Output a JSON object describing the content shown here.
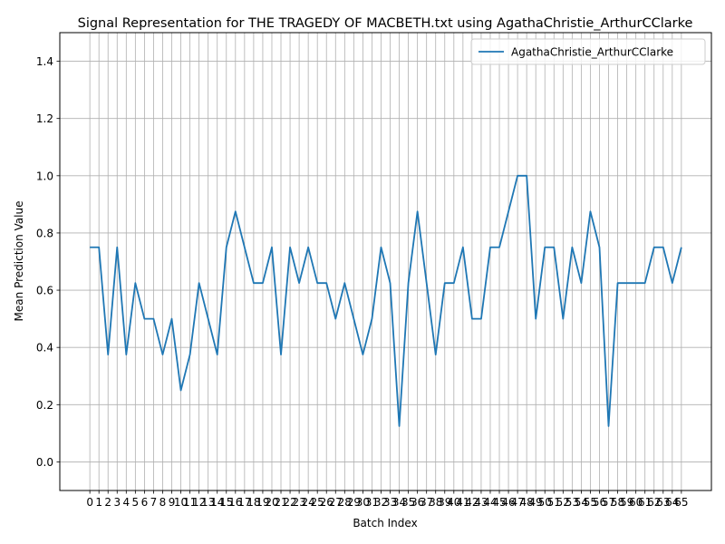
{
  "chart_data": {
    "type": "line",
    "title": "Signal Representation for THE TRAGEDY OF MACBETH.txt using AgathaChristie_ArthurCClarke",
    "xlabel": "Batch Index",
    "ylabel": "Mean Prediction Value",
    "xlim": [
      -3.3,
      68.3
    ],
    "ylim": [
      -0.1,
      1.5
    ],
    "yticks": [
      0.0,
      0.2,
      0.4,
      0.6,
      0.8,
      1.0,
      1.2,
      1.4
    ],
    "grid": true,
    "legend_position": "top-right",
    "series": [
      {
        "name": "AgathaChristie_ArthurCClarke",
        "color": "#1f77b4",
        "x": [
          0,
          1,
          2,
          3,
          4,
          5,
          6,
          7,
          8,
          9,
          10,
          11,
          12,
          13,
          14,
          15,
          16,
          17,
          18,
          19,
          20,
          21,
          22,
          23,
          24,
          25,
          26,
          27,
          28,
          29,
          30,
          31,
          32,
          33,
          34,
          35,
          36,
          37,
          38,
          39,
          40,
          41,
          42,
          43,
          44,
          45,
          46,
          47,
          48,
          49,
          50,
          51,
          52,
          53,
          54,
          55,
          56,
          57,
          58,
          59,
          60,
          61,
          62,
          63,
          64,
          65
        ],
        "values": [
          0.75,
          0.75,
          0.375,
          0.75,
          0.375,
          0.625,
          0.5,
          0.5,
          0.375,
          0.5,
          0.25,
          0.375,
          0.625,
          0.5,
          0.375,
          0.75,
          0.875,
          0.75,
          0.625,
          0.625,
          0.75,
          0.375,
          0.75,
          0.625,
          0.75,
          0.625,
          0.625,
          0.5,
          0.625,
          0.5,
          0.375,
          0.5,
          0.75,
          0.625,
          0.125,
          0.625,
          0.875,
          0.625,
          0.375,
          0.625,
          0.625,
          0.75,
          0.5,
          0.5,
          0.75,
          0.75,
          0.875,
          1.0,
          1.0,
          0.5,
          0.75,
          0.75,
          0.5,
          0.75,
          0.625,
          0.875,
          0.75,
          0.125,
          0.625,
          0.625,
          0.625,
          0.625,
          0.75,
          0.75,
          0.625,
          0.75
        ]
      }
    ]
  }
}
